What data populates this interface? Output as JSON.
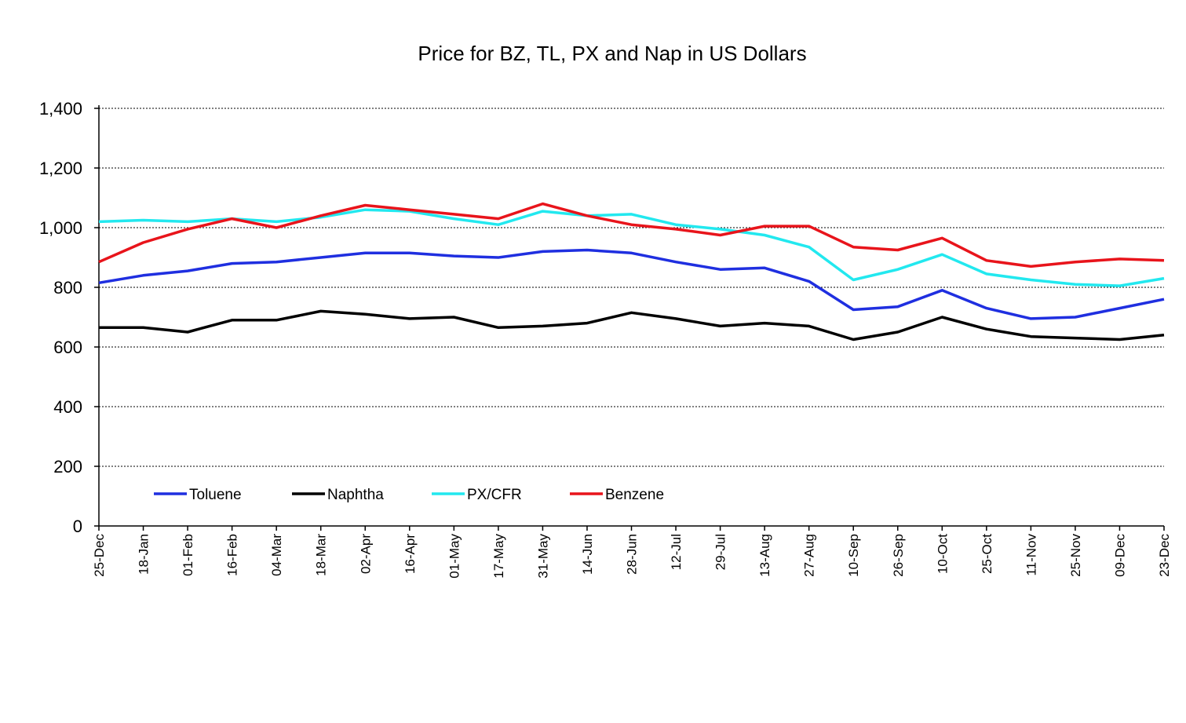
{
  "chart_data": {
    "type": "line",
    "title": "Price for BZ, TL, PX and Nap in US Dollars",
    "xlabel": "",
    "ylabel": "",
    "ylim": [
      0,
      1400
    ],
    "yticks": [
      0,
      200,
      400,
      600,
      800,
      1000,
      1200,
      1400
    ],
    "ytick_labels": [
      "0",
      "200",
      "400",
      "600",
      "800",
      "1,000",
      "1,200",
      "1,400"
    ],
    "grid": "horizontal dotted",
    "legend_position": "bottom-left inside plot",
    "categories": [
      "25-Dec",
      "18-Jan",
      "01-Feb",
      "16-Feb",
      "04-Mar",
      "18-Mar",
      "02-Apr",
      "16-Apr",
      "01-May",
      "17-May",
      "31-May",
      "14-Jun",
      "28-Jun",
      "12-Jul",
      "29-Jul",
      "13-Aug",
      "27-Aug",
      "10-Sep",
      "26-Sep",
      "10-Oct",
      "25-Oct",
      "11-Nov",
      "25-Nov",
      "09-Dec",
      "23-Dec"
    ],
    "series": [
      {
        "name": "Toluene",
        "color": "#1f2fe0",
        "values": [
          815,
          840,
          855,
          880,
          885,
          900,
          915,
          915,
          905,
          900,
          920,
          925,
          915,
          885,
          860,
          865,
          820,
          725,
          735,
          790,
          730,
          695,
          700,
          730,
          760
        ]
      },
      {
        "name": "Naphtha",
        "color": "#000000",
        "values": [
          665,
          665,
          650,
          690,
          690,
          720,
          710,
          695,
          700,
          665,
          670,
          680,
          715,
          695,
          670,
          680,
          670,
          625,
          650,
          700,
          660,
          635,
          630,
          625,
          640
        ]
      },
      {
        "name": "PX/CFR",
        "color": "#22e8ef",
        "values": [
          1020,
          1025,
          1020,
          1030,
          1020,
          1035,
          1060,
          1055,
          1030,
          1010,
          1055,
          1040,
          1045,
          1010,
          995,
          975,
          935,
          825,
          860,
          910,
          845,
          825,
          810,
          805,
          830
        ]
      },
      {
        "name": "Benzene",
        "color": "#e8141b",
        "values": [
          885,
          950,
          995,
          1030,
          1000,
          1040,
          1075,
          1060,
          1045,
          1030,
          1080,
          1040,
          1010,
          995,
          975,
          1005,
          1005,
          935,
          925,
          965,
          890,
          870,
          885,
          895,
          890
        ]
      }
    ]
  }
}
